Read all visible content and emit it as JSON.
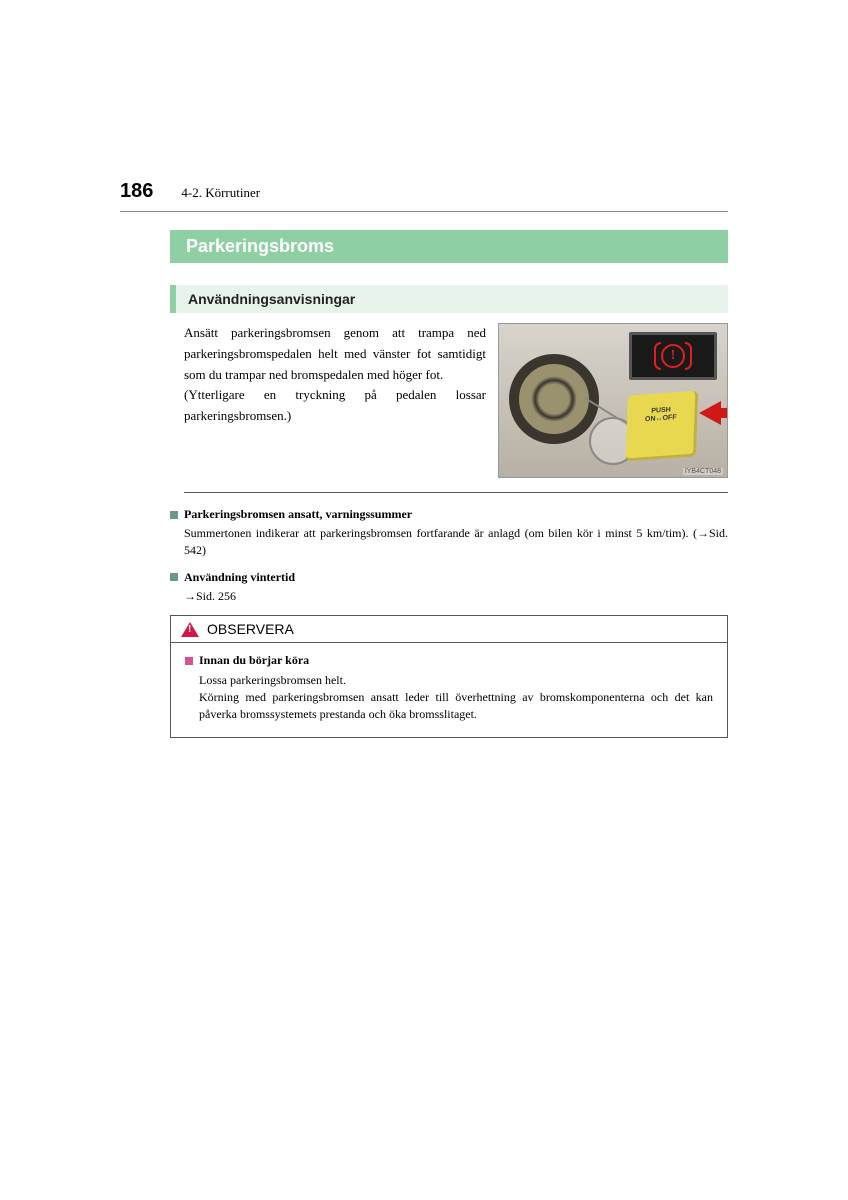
{
  "header": {
    "page_number": "186",
    "section": "4-2. Körrutiner"
  },
  "title": "Parkeringsbroms",
  "subsection": "Användningsanvisningar",
  "body": {
    "para1": "Ansätt parkeringsbromsen genom att trampa ned parkeringsbromspedalen helt med vänster fot samtidigt som du trampar ned bromspedalen med höger fot.",
    "para2": "(Ytterligare en tryckning på pedalen lossar parkeringsbromsen.)"
  },
  "figure": {
    "pedal_label_line1": "PUSH",
    "pedal_label_line2": "ON↔OFF",
    "brake_symbol": "!",
    "code": "IYB4CT048"
  },
  "notes": [
    {
      "title": "Parkeringsbromsen ansatt, varningssummer",
      "body": "Summertonen indikerar att parkeringsbromsen fortfarande är anlagd (om bilen kör i minst 5 km/tim). (→Sid. 542)"
    },
    {
      "title": "Användning vintertid",
      "body": "→Sid. 256"
    }
  ],
  "observera": {
    "label": "OBSERVERA",
    "item_title": "Innan du börjar köra",
    "line1": "Lossa parkeringsbromsen helt.",
    "line2": "Körning med parkeringsbromsen ansatt leder till överhettning av bromskomponenterna och det kan påverka bromssystemets prestanda och öka bromsslitaget."
  },
  "colors": {
    "accent_green": "#8fcfa4",
    "light_green_bg": "#e6f4ec",
    "note_bullet": "#6a9a82",
    "warning_pink": "#d95090",
    "warning_red": "#d01848"
  }
}
